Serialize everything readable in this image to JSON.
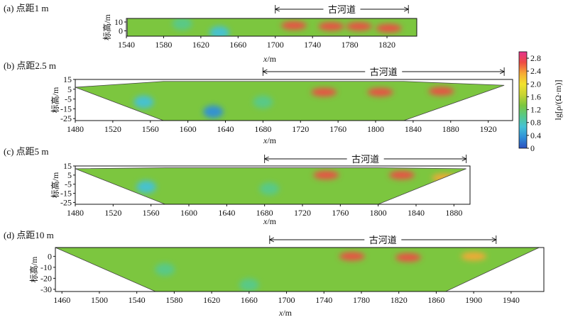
{
  "chart_data": [
    {
      "type": "heatmap",
      "panel_label": "(a) 点距1 m",
      "xlabel_var": "x",
      "xlabel_unit": "/m",
      "ylabel": "标高/m",
      "xticks": [
        1540,
        1580,
        1620,
        1660,
        1700,
        1740,
        1780,
        1820
      ],
      "yticks": [
        10,
        0
      ],
      "xlim": [
        1540,
        1852
      ],
      "ylim": [
        -6,
        14
      ],
      "annotation": "古河道",
      "annotation_range": [
        1700,
        1843
      ],
      "section_profile": {
        "x": [
          1541,
          1600,
          1700,
          1852
        ],
        "bottom": [
          -6,
          -6,
          -6,
          -6
        ],
        "top": [
          14,
          14,
          14,
          14
        ]
      },
      "anomalies": [
        {
          "x": 1640,
          "y": -2,
          "value": 0.5,
          "kind": "low"
        },
        {
          "x": 1600,
          "y": 8,
          "value": 0.9,
          "kind": "low"
        },
        {
          "x": 1720,
          "y": 6,
          "value": 2.6,
          "kind": "high"
        },
        {
          "x": 1760,
          "y": 5,
          "value": 2.6,
          "kind": "high"
        },
        {
          "x": 1790,
          "y": 5,
          "value": 2.7,
          "kind": "high"
        },
        {
          "x": 1822,
          "y": 3,
          "value": 2.8,
          "kind": "high"
        }
      ]
    },
    {
      "type": "heatmap",
      "panel_label": "(b) 点距2.5 m",
      "xlabel_var": "x",
      "xlabel_unit": "/m",
      "ylabel": "标高/m",
      "xticks": [
        1480,
        1520,
        1560,
        1600,
        1640,
        1680,
        1720,
        1760,
        1800,
        1840,
        1880,
        1920
      ],
      "yticks": [
        15,
        5,
        -5,
        -15,
        -25
      ],
      "xlim": [
        1480,
        1946
      ],
      "ylim": [
        -27,
        15
      ],
      "annotation": "古河道",
      "annotation_range": [
        1680,
        1937
      ],
      "section_profile": {
        "x": [
          1480,
          1574,
          1700,
          1830,
          1937
        ],
        "bottom": [
          7,
          -27,
          -27,
          -27,
          9
        ],
        "top": [
          7,
          13,
          13,
          13,
          9
        ]
      },
      "anomalies": [
        {
          "x": 1553,
          "y": -8,
          "value": 0.8,
          "kind": "low"
        },
        {
          "x": 1627,
          "y": -18,
          "value": 0.4,
          "kind": "low"
        },
        {
          "x": 1680,
          "y": -8,
          "value": 0.9,
          "kind": "low"
        },
        {
          "x": 1745,
          "y": 2,
          "value": 2.6,
          "kind": "high"
        },
        {
          "x": 1805,
          "y": 2,
          "value": 2.7,
          "kind": "high"
        },
        {
          "x": 1870,
          "y": 3,
          "value": 2.6,
          "kind": "high"
        }
      ]
    },
    {
      "type": "heatmap",
      "panel_label": "(c) 点距5 m",
      "xlabel_var": "x",
      "xlabel_unit": "/m",
      "ylabel": "标高/m",
      "xticks": [
        1480,
        1520,
        1560,
        1600,
        1640,
        1680,
        1720,
        1760,
        1800,
        1840,
        1880
      ],
      "yticks": [
        15,
        5,
        -5,
        -15,
        -25
      ],
      "xlim": [
        1480,
        1897
      ],
      "ylim": [
        -27,
        15
      ],
      "annotation": "古河道",
      "annotation_range": [
        1680,
        1893
      ],
      "section_profile": {
        "x": [
          1480,
          1575,
          1700,
          1800,
          1893
        ],
        "bottom": [
          12,
          -27,
          -27,
          -27,
          12
        ],
        "top": [
          12,
          13,
          13,
          13,
          12
        ]
      },
      "anomalies": [
        {
          "x": 1555,
          "y": -8,
          "value": 0.8,
          "kind": "low"
        },
        {
          "x": 1685,
          "y": -10,
          "value": 1.1,
          "kind": "low"
        },
        {
          "x": 1745,
          "y": 5,
          "value": 2.6,
          "kind": "high"
        },
        {
          "x": 1825,
          "y": 5,
          "value": 2.5,
          "kind": "high"
        },
        {
          "x": 1870,
          "y": 2,
          "value": 2.4,
          "kind": "high"
        }
      ]
    },
    {
      "type": "heatmap",
      "panel_label": "(d) 点距10 m",
      "xlabel_var": "x",
      "xlabel_unit": "/m",
      "ylabel": "标高/m",
      "xticks": [
        1460,
        1500,
        1540,
        1580,
        1620,
        1660,
        1700,
        1740,
        1780,
        1820,
        1860,
        1900,
        1940
      ],
      "yticks": [
        0,
        -10,
        -20,
        -30
      ],
      "xlim": [
        1453,
        1975
      ],
      "ylim": [
        -32,
        8
      ],
      "annotation": "古河道",
      "annotation_range": [
        1682,
        1924
      ],
      "section_profile": {
        "x": [
          1453,
          1560,
          1700,
          1870,
          1970
        ],
        "bottom": [
          8,
          -32,
          -32,
          -32,
          8
        ],
        "top": [
          8,
          8,
          8,
          8,
          8
        ]
      },
      "anomalies": [
        {
          "x": 1570,
          "y": -12,
          "value": 0.9,
          "kind": "low"
        },
        {
          "x": 1660,
          "y": -26,
          "value": 1.0,
          "kind": "low"
        },
        {
          "x": 1770,
          "y": 0,
          "value": 2.5,
          "kind": "high"
        },
        {
          "x": 1830,
          "y": -1,
          "value": 2.5,
          "kind": "high"
        },
        {
          "x": 1900,
          "y": 0,
          "value": 2.4,
          "kind": "high"
        }
      ]
    }
  ],
  "colorbar": {
    "label": "lg[ρ/(Ω·m)]",
    "ticks": [
      "2.8",
      "2.4",
      "2.0",
      "1.6",
      "1.2",
      "0.8",
      "0.4",
      "0"
    ],
    "range": [
      0,
      3.0
    ],
    "colors": [
      "#2b4fbf",
      "#2f8fd8",
      "#45c2d6",
      "#56c98a",
      "#7cc63f",
      "#c8d434",
      "#f2e22e",
      "#f7a935",
      "#ee4b43",
      "#e5338f"
    ]
  }
}
